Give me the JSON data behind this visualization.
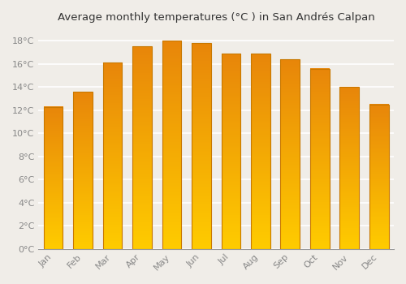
{
  "title": "Average monthly temperatures (°C ) in San Andrés Calpan",
  "months": [
    "Jan",
    "Feb",
    "Mar",
    "Apr",
    "May",
    "Jun",
    "Jul",
    "Aug",
    "Sep",
    "Oct",
    "Nov",
    "Dec"
  ],
  "values": [
    12.3,
    13.6,
    16.1,
    17.5,
    18.0,
    17.8,
    16.9,
    16.9,
    16.4,
    15.6,
    14.0,
    12.5
  ],
  "bar_color_top": "#E8860A",
  "bar_color_bottom": "#FFCC00",
  "bar_edge_color": "#C87800",
  "ylim": [
    0,
    19
  ],
  "yticks": [
    0,
    2,
    4,
    6,
    8,
    10,
    12,
    14,
    16,
    18
  ],
  "ytick_labels": [
    "0°C",
    "2°C",
    "4°C",
    "6°C",
    "8°C",
    "10°C",
    "12°C",
    "14°C",
    "16°C",
    "18°C"
  ],
  "background_color": "#f0ede8",
  "grid_color": "#ffffff",
  "title_fontsize": 9.5,
  "tick_fontsize": 8,
  "tick_color": "#888888",
  "bar_width": 0.65
}
